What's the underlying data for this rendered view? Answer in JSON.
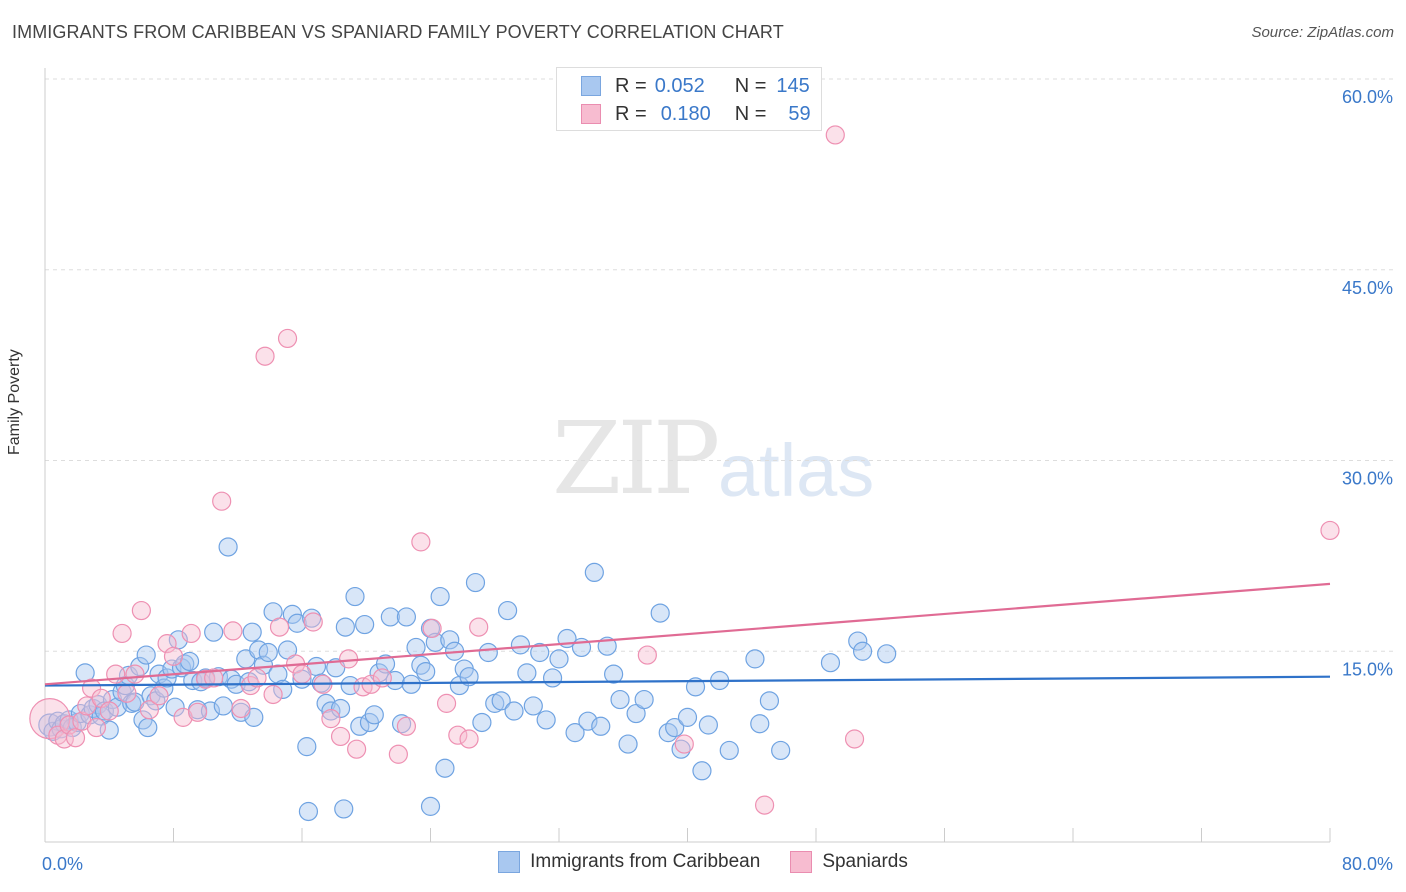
{
  "title": "IMMIGRANTS FROM CARIBBEAN VS SPANIARD FAMILY POVERTY CORRELATION CHART",
  "source": "Source: ZipAtlas.com",
  "watermark": {
    "zip": "ZIP",
    "atlas": "atlas"
  },
  "legend": {
    "rows": [
      {
        "r_label": "R =",
        "r_value": "0.052",
        "n_label": "N =",
        "n_value": "145",
        "color": "#a9c8f0",
        "border": "#7aa6df"
      },
      {
        "r_label": "R =",
        "r_value": "0.180",
        "n_label": "N =",
        "n_value": "59",
        "color": "#f7bcd0",
        "border": "#ea8db0"
      }
    ]
  },
  "bottom_legend": [
    {
      "label": "Immigrants from Caribbean",
      "color": "#a9c8f0",
      "border": "#7aa6df"
    },
    {
      "label": "Spaniards",
      "color": "#f7bcd0",
      "border": "#ea8db0"
    }
  ],
  "chart_data": {
    "type": "scatter",
    "ylabel": "Family Poverty",
    "xlim": [
      0,
      80
    ],
    "ylim": [
      0,
      60
    ],
    "x_tick_labels": [
      {
        "value": 0,
        "label": "0.0%"
      },
      {
        "value": 80,
        "label": "80.0%"
      }
    ],
    "y_tick_labels": [
      {
        "value": 15,
        "label": "15.0%"
      },
      {
        "value": 30,
        "label": "30.0%"
      },
      {
        "value": 45,
        "label": "45.0%"
      },
      {
        "value": 60,
        "label": "60.0%"
      }
    ],
    "grid": true,
    "series": [
      {
        "name": "Immigrants from Caribbean",
        "color": "#6fa3e2",
        "fill": "rgba(169,200,240,0.45)",
        "trend": {
          "x": [
            0,
            80
          ],
          "y": [
            12.3,
            13.0
          ],
          "color": "#2f72c9"
        },
        "points": [
          [
            0.3,
            9.2
          ],
          [
            0.5,
            8.7
          ],
          [
            0.8,
            9.5
          ],
          [
            1.0,
            8.9
          ],
          [
            1.2,
            9.3
          ],
          [
            1.5,
            9.6
          ],
          [
            1.7,
            9.0
          ],
          [
            2.0,
            9.4
          ],
          [
            2.2,
            10.1
          ],
          [
            2.5,
            13.3
          ],
          [
            2.8,
            10.0
          ],
          [
            3.0,
            10.5
          ],
          [
            3.3,
            10.8
          ],
          [
            3.5,
            9.9
          ],
          [
            3.7,
            10.3
          ],
          [
            4.0,
            8.8
          ],
          [
            4.2,
            11.2
          ],
          [
            4.5,
            10.6
          ],
          [
            4.8,
            11.8
          ],
          [
            5.0,
            12.3
          ],
          [
            5.2,
            13.1
          ],
          [
            5.4,
            10.9
          ],
          [
            5.6,
            11.0
          ],
          [
            5.9,
            13.8
          ],
          [
            6.1,
            9.6
          ],
          [
            6.3,
            14.7
          ],
          [
            6.6,
            11.5
          ],
          [
            6.9,
            11.1
          ],
          [
            7.1,
            13.2
          ],
          [
            7.4,
            12.1
          ],
          [
            7.6,
            12.9
          ],
          [
            7.9,
            13.6
          ],
          [
            8.1,
            10.6
          ],
          [
            8.3,
            15.9
          ],
          [
            8.5,
            13.7
          ],
          [
            8.7,
            14.0
          ],
          [
            9.0,
            14.2
          ],
          [
            9.2,
            12.7
          ],
          [
            9.5,
            10.4
          ],
          [
            9.7,
            12.6
          ],
          [
            10.0,
            12.9
          ],
          [
            10.3,
            10.3
          ],
          [
            10.5,
            16.5
          ],
          [
            10.8,
            13.0
          ],
          [
            11.1,
            10.7
          ],
          [
            11.4,
            23.2
          ],
          [
            11.6,
            12.8
          ],
          [
            11.9,
            12.4
          ],
          [
            12.2,
            10.2
          ],
          [
            12.5,
            14.4
          ],
          [
            12.7,
            12.6
          ],
          [
            13.0,
            9.8
          ],
          [
            13.3,
            15.1
          ],
          [
            13.6,
            13.9
          ],
          [
            13.9,
            14.9
          ],
          [
            14.2,
            18.1
          ],
          [
            14.5,
            13.2
          ],
          [
            14.8,
            12.0
          ],
          [
            15.1,
            15.1
          ],
          [
            15.4,
            17.9
          ],
          [
            15.7,
            17.2
          ],
          [
            16.0,
            12.8
          ],
          [
            16.3,
            7.5
          ],
          [
            16.6,
            17.6
          ],
          [
            16.9,
            13.8
          ],
          [
            17.2,
            12.5
          ],
          [
            17.5,
            10.9
          ],
          [
            17.8,
            10.3
          ],
          [
            18.1,
            13.7
          ],
          [
            18.4,
            10.5
          ],
          [
            18.7,
            16.9
          ],
          [
            19.0,
            12.3
          ],
          [
            19.3,
            19.3
          ],
          [
            19.6,
            9.1
          ],
          [
            19.9,
            17.1
          ],
          [
            20.2,
            9.4
          ],
          [
            20.5,
            10.0
          ],
          [
            20.8,
            13.3
          ],
          [
            21.2,
            14.0
          ],
          [
            21.5,
            17.7
          ],
          [
            21.8,
            12.7
          ],
          [
            22.2,
            9.3
          ],
          [
            22.5,
            17.7
          ],
          [
            22.8,
            12.4
          ],
          [
            23.1,
            15.3
          ],
          [
            23.4,
            13.9
          ],
          [
            23.7,
            13.4
          ],
          [
            24.0,
            16.8
          ],
          [
            24.3,
            15.7
          ],
          [
            24.6,
            19.3
          ],
          [
            24.9,
            5.8
          ],
          [
            25.2,
            15.9
          ],
          [
            25.5,
            15.0
          ],
          [
            25.8,
            12.3
          ],
          [
            26.1,
            13.6
          ],
          [
            26.4,
            13.0
          ],
          [
            26.8,
            20.4
          ],
          [
            27.2,
            9.4
          ],
          [
            27.6,
            14.9
          ],
          [
            28.0,
            10.9
          ],
          [
            28.4,
            11.1
          ],
          [
            28.8,
            18.2
          ],
          [
            29.2,
            10.3
          ],
          [
            29.6,
            15.5
          ],
          [
            30.0,
            13.3
          ],
          [
            30.4,
            10.7
          ],
          [
            30.8,
            14.9
          ],
          [
            31.2,
            9.6
          ],
          [
            31.6,
            12.9
          ],
          [
            32.0,
            14.4
          ],
          [
            32.5,
            16.0
          ],
          [
            33.0,
            8.6
          ],
          [
            33.4,
            15.3
          ],
          [
            33.8,
            9.5
          ],
          [
            34.2,
            21.2
          ],
          [
            34.6,
            9.1
          ],
          [
            35.0,
            15.4
          ],
          [
            35.4,
            13.2
          ],
          [
            35.8,
            11.2
          ],
          [
            36.3,
            7.7
          ],
          [
            36.8,
            10.1
          ],
          [
            37.3,
            11.2
          ],
          [
            38.3,
            18.0
          ],
          [
            38.8,
            8.6
          ],
          [
            39.2,
            9.0
          ],
          [
            39.6,
            7.3
          ],
          [
            40.0,
            9.8
          ],
          [
            40.5,
            12.2
          ],
          [
            40.9,
            5.6
          ],
          [
            41.3,
            9.2
          ],
          [
            42.0,
            12.7
          ],
          [
            42.6,
            7.2
          ],
          [
            44.2,
            14.4
          ],
          [
            44.5,
            9.3
          ],
          [
            45.1,
            11.1
          ],
          [
            45.8,
            7.2
          ],
          [
            48.9,
            14.1
          ],
          [
            50.6,
            15.8
          ],
          [
            50.9,
            15.0
          ],
          [
            52.4,
            14.8
          ],
          [
            18.6,
            2.6
          ],
          [
            24.0,
            2.8
          ],
          [
            12.9,
            16.5
          ],
          [
            16.4,
            2.4
          ],
          [
            6.4,
            9.0
          ]
        ]
      },
      {
        "name": "Spaniards",
        "color": "#ee90b2",
        "fill": "rgba(247,188,208,0.45)",
        "trend": {
          "x": [
            0,
            80
          ],
          "y": [
            12.4,
            20.3
          ],
          "color": "#e06b94"
        },
        "points": [
          [
            0.3,
            9.7
          ],
          [
            0.8,
            8.4
          ],
          [
            1.2,
            8.1
          ],
          [
            1.5,
            9.2
          ],
          [
            1.9,
            8.2
          ],
          [
            2.3,
            9.5
          ],
          [
            2.6,
            10.7
          ],
          [
            2.9,
            12.1
          ],
          [
            3.2,
            9.0
          ],
          [
            3.5,
            11.3
          ],
          [
            4.0,
            10.3
          ],
          [
            4.4,
            13.2
          ],
          [
            4.8,
            16.4
          ],
          [
            5.1,
            11.7
          ],
          [
            5.6,
            13.2
          ],
          [
            6.0,
            18.2
          ],
          [
            6.5,
            10.4
          ],
          [
            7.1,
            11.5
          ],
          [
            7.6,
            15.6
          ],
          [
            8.0,
            14.6
          ],
          [
            8.6,
            9.8
          ],
          [
            9.1,
            16.4
          ],
          [
            9.5,
            10.2
          ],
          [
            10.0,
            12.8
          ],
          [
            10.5,
            12.9
          ],
          [
            11.0,
            26.8
          ],
          [
            11.7,
            16.6
          ],
          [
            12.2,
            10.5
          ],
          [
            12.8,
            12.3
          ],
          [
            13.2,
            12.9
          ],
          [
            13.7,
            38.2
          ],
          [
            14.2,
            11.6
          ],
          [
            14.6,
            16.9
          ],
          [
            15.1,
            39.6
          ],
          [
            15.6,
            14.0
          ],
          [
            16.0,
            13.2
          ],
          [
            16.7,
            17.3
          ],
          [
            17.3,
            12.4
          ],
          [
            17.8,
            9.7
          ],
          [
            18.4,
            8.3
          ],
          [
            18.9,
            14.4
          ],
          [
            19.4,
            7.3
          ],
          [
            19.8,
            12.2
          ],
          [
            20.3,
            12.4
          ],
          [
            21.0,
            12.9
          ],
          [
            22.0,
            6.9
          ],
          [
            22.5,
            9.1
          ],
          [
            23.4,
            23.6
          ],
          [
            24.1,
            16.8
          ],
          [
            25.0,
            10.9
          ],
          [
            25.7,
            8.4
          ],
          [
            26.4,
            8.1
          ],
          [
            27.0,
            16.9
          ],
          [
            37.5,
            14.7
          ],
          [
            39.8,
            7.7
          ],
          [
            44.8,
            2.9
          ],
          [
            50.4,
            8.1
          ],
          [
            80.0,
            24.5
          ],
          [
            49.2,
            55.6
          ]
        ]
      }
    ]
  }
}
